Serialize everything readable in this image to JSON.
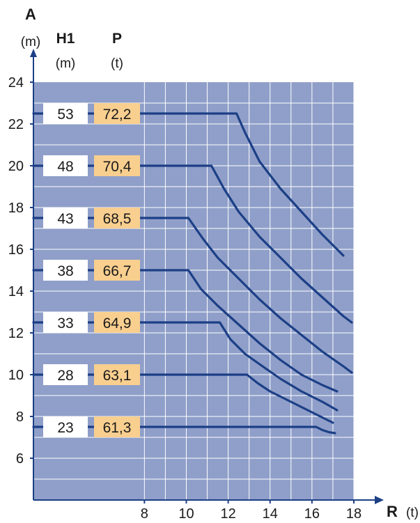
{
  "chart_data": {
    "type": "line",
    "title": "",
    "ylabel": "A",
    "yunit": "(m)",
    "xlabel": "R",
    "xunit": "(t)",
    "h1_label": "H1",
    "h1_unit": "(m)",
    "p_label": "P",
    "p_unit": "(t)",
    "ylim": [
      4,
      24
    ],
    "xlim": [
      2.7,
      18
    ],
    "grid": true,
    "y_ticks": [
      "6",
      "8",
      "10",
      "12",
      "14",
      "16",
      "18",
      "20",
      "22",
      "24"
    ],
    "x_ticks": [
      "8",
      "10",
      "12",
      "14",
      "16",
      "18"
    ],
    "series": [
      {
        "h1": "53",
        "p": "72,2",
        "level": 22.5,
        "x": [
          12.4,
          12.8,
          13.5,
          14.5,
          15.5,
          16.5,
          17.5
        ],
        "y": [
          22.5,
          21.6,
          20.2,
          18.9,
          17.8,
          16.7,
          15.7
        ]
      },
      {
        "h1": "48",
        "p": "70,4",
        "level": 20.0,
        "x": [
          11.2,
          11.8,
          12.5,
          13.5,
          14.5,
          15.5,
          16.5,
          17.5,
          17.9
        ],
        "y": [
          20.0,
          18.9,
          17.8,
          16.6,
          15.6,
          14.6,
          13.7,
          12.8,
          12.5
        ]
      },
      {
        "h1": "43",
        "p": "68,5",
        "level": 17.5,
        "x": [
          10.1,
          10.8,
          11.5,
          12.5,
          13.5,
          14.5,
          15.5,
          16.5,
          17.5,
          17.9
        ],
        "y": [
          17.5,
          16.5,
          15.6,
          14.6,
          13.6,
          12.7,
          11.9,
          11.1,
          10.4,
          10.1
        ]
      },
      {
        "h1": "38",
        "p": "66,7",
        "level": 15.0,
        "x": [
          10.1,
          10.7,
          11.5,
          12.5,
          13.5,
          14.5,
          15.5,
          16.5,
          17.2
        ],
        "y": [
          15.0,
          14.1,
          13.3,
          12.4,
          11.5,
          10.7,
          10.0,
          9.5,
          9.2
        ]
      },
      {
        "h1": "33",
        "p": "64,9",
        "level": 12.5,
        "x": [
          11.6,
          12.1,
          12.8,
          13.5,
          14.5,
          15.5,
          16.5,
          17.2
        ],
        "y": [
          12.5,
          11.7,
          11.0,
          10.5,
          9.8,
          9.2,
          8.7,
          8.3
        ]
      },
      {
        "h1": "28",
        "p": "63,1",
        "level": 10.0,
        "x": [
          12.9,
          13.4,
          14.0,
          14.8,
          15.6,
          16.4,
          17.0
        ],
        "y": [
          10.0,
          9.6,
          9.2,
          8.8,
          8.4,
          8.0,
          7.7
        ]
      },
      {
        "h1": "23",
        "p": "61,3",
        "level": 7.5,
        "x": [
          16.2,
          16.5,
          16.8,
          17.1
        ],
        "y": [
          7.5,
          7.35,
          7.25,
          7.2
        ]
      }
    ]
  },
  "colors": {
    "plot_bg": "#8f9fc9",
    "grid": "#ffffff",
    "curve": "#1c3f86",
    "axis": "#1c3f86",
    "p_box": "#f8cf8f",
    "h1_box": "#ffffff"
  }
}
